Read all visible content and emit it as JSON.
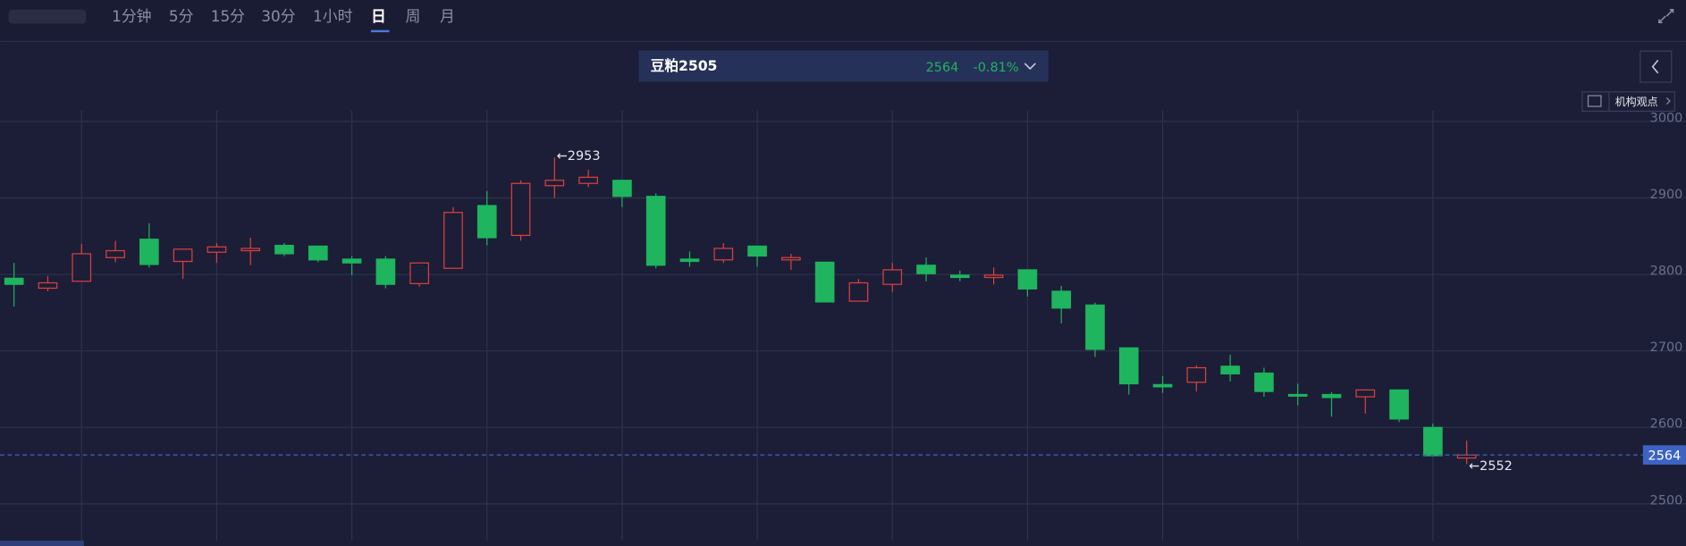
{
  "toolbar": {
    "intervals": [
      "1分钟",
      "5分",
      "15分",
      "30分",
      "1小时",
      "日",
      "周",
      "月"
    ],
    "active": 5
  },
  "instrument": {
    "name": "豆粕2505",
    "price": 2564,
    "change": "-0.81%"
  },
  "side_button": "机构观点",
  "chart_data": {
    "type": "candlestick",
    "categories": [
      null,
      null,
      null,
      null,
      null,
      null,
      null,
      null,
      null,
      null,
      null,
      null,
      null,
      null,
      null,
      null,
      null,
      null,
      null,
      null,
      null,
      null,
      null,
      null,
      null,
      null,
      null,
      null,
      null,
      null,
      null,
      null,
      null,
      null,
      null,
      null,
      null,
      null,
      null,
      null,
      null,
      null,
      null,
      null
    ],
    "open": [
      2795,
      2782,
      2791,
      2822,
      2846,
      2817,
      2829,
      2831,
      2838,
      2837,
      2820,
      2820,
      2788,
      2808,
      2890,
      2851,
      2916,
      2919,
      2923,
      2902,
      2820,
      2819,
      2837,
      2819,
      2816,
      2765,
      2787,
      2812,
      2799,
      2796,
      2806,
      2778,
      2760,
      2704,
      2656,
      2659,
      2680,
      2671,
      2643,
      2643,
      2640,
      2649,
      2600,
      2560
    ],
    "high": [
      2815,
      2798,
      2840,
      2844,
      2867,
      2833,
      2841,
      2848,
      2841,
      2837,
      2824,
      2824,
      2815,
      2888,
      2909,
      2923,
      2953,
      2937,
      2924,
      2906,
      2830,
      2841,
      2837,
      2827,
      2816,
      2794,
      2815,
      2822,
      2805,
      2809,
      2806,
      2785,
      2763,
      2704,
      2667,
      2681,
      2695,
      2678,
      2657,
      2646,
      2650,
      2649,
      2605,
      2583
    ],
    "low": [
      2758,
      2778,
      2791,
      2816,
      2809,
      2794,
      2815,
      2812,
      2824,
      2816,
      2799,
      2782,
      2784,
      2808,
      2838,
      2844,
      2900,
      2914,
      2888,
      2808,
      2810,
      2815,
      2810,
      2806,
      2764,
      2765,
      2777,
      2791,
      2791,
      2787,
      2771,
      2736,
      2692,
      2643,
      2645,
      2647,
      2660,
      2640,
      2629,
      2614,
      2618,
      2607,
      2563,
      2552
    ],
    "close": [
      2787,
      2789,
      2827,
      2831,
      2813,
      2833,
      2836,
      2834,
      2827,
      2819,
      2815,
      2787,
      2815,
      2881,
      2848,
      2919,
      2923,
      2927,
      2902,
      2812,
      2817,
      2834,
      2824,
      2822,
      2764,
      2789,
      2806,
      2801,
      2796,
      2799,
      2781,
      2756,
      2702,
      2657,
      2653,
      2678,
      2670,
      2647,
      2642,
      2639,
      2649,
      2611,
      2563,
      2564
    ],
    "up_color": "#e0403f",
    "down_color": "#1fb45e",
    "ylim": [
      2452,
      3014
    ],
    "yticks": [
      2500,
      2600,
      2700,
      2800,
      2900,
      3000
    ],
    "grid": true,
    "max_label": "←2953",
    "min_label": "←2552",
    "last_price": 2564,
    "last_price_color": "#3d63c4"
  }
}
